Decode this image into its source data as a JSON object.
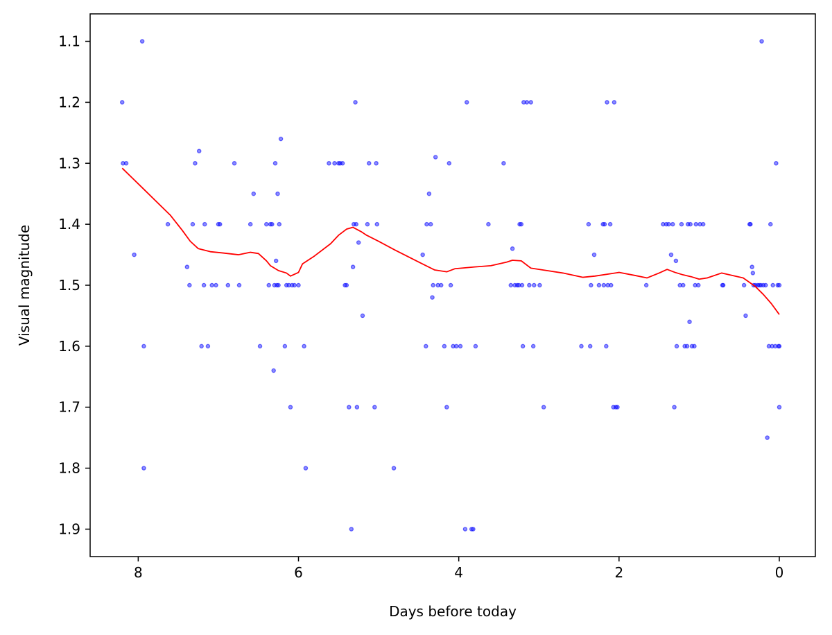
{
  "chart_data": {
    "type": "scatter",
    "title": "",
    "xlabel": "Days before today",
    "ylabel": "Visual magnitude",
    "xlim": [
      8.6,
      -0.45
    ],
    "ylim": [
      1.945,
      1.055
    ],
    "y_inverted": true,
    "x_inverted": true,
    "grid": false,
    "xticks": [
      8,
      6,
      4,
      2,
      0
    ],
    "yticks": [
      1.1,
      1.2,
      1.3,
      1.4,
      1.5,
      1.6,
      1.7,
      1.8,
      1.9
    ],
    "colors": {
      "points": "#0000ff",
      "trend": "#ff0000"
    },
    "series": [
      {
        "kind": "points",
        "values": [
          [
            8.2,
            1.2
          ],
          [
            8.19,
            1.3
          ],
          [
            8.15,
            1.3
          ],
          [
            8.05,
            1.45
          ],
          [
            7.95,
            1.1
          ],
          [
            7.93,
            1.6
          ],
          [
            7.93,
            1.8
          ],
          [
            7.63,
            1.4
          ],
          [
            7.39,
            1.47
          ],
          [
            7.36,
            1.5
          ],
          [
            7.32,
            1.4
          ],
          [
            7.29,
            1.3
          ],
          [
            7.24,
            1.28
          ],
          [
            7.21,
            1.6
          ],
          [
            7.18,
            1.5
          ],
          [
            7.17,
            1.4
          ],
          [
            7.13,
            1.6
          ],
          [
            7.08,
            1.5
          ],
          [
            7.03,
            1.5
          ],
          [
            7.0,
            1.4
          ],
          [
            6.98,
            1.4
          ],
          [
            6.88,
            1.5
          ],
          [
            6.8,
            1.3
          ],
          [
            6.74,
            1.5
          ],
          [
            6.6,
            1.4
          ],
          [
            6.56,
            1.35
          ],
          [
            6.48,
            1.6
          ],
          [
            6.4,
            1.4
          ],
          [
            6.37,
            1.5
          ],
          [
            6.35,
            1.4
          ],
          [
            6.33,
            1.4
          ],
          [
            6.31,
            1.64
          ],
          [
            6.3,
            1.5
          ],
          [
            6.29,
            1.3
          ],
          [
            6.28,
            1.46
          ],
          [
            6.27,
            1.5
          ],
          [
            6.26,
            1.35
          ],
          [
            6.25,
            1.5
          ],
          [
            6.24,
            1.4
          ],
          [
            6.22,
            1.26
          ],
          [
            6.17,
            1.6
          ],
          [
            6.15,
            1.5
          ],
          [
            6.12,
            1.5
          ],
          [
            6.1,
            1.7
          ],
          [
            6.08,
            1.5
          ],
          [
            6.05,
            1.5
          ],
          [
            6.0,
            1.5
          ],
          [
            5.93,
            1.6
          ],
          [
            5.91,
            1.8
          ],
          [
            5.62,
            1.3
          ],
          [
            5.55,
            1.3
          ],
          [
            5.5,
            1.3
          ],
          [
            5.48,
            1.3
          ],
          [
            5.45,
            1.3
          ],
          [
            5.42,
            1.5
          ],
          [
            5.4,
            1.5
          ],
          [
            5.37,
            1.7
          ],
          [
            5.34,
            1.9
          ],
          [
            5.32,
            1.47
          ],
          [
            5.31,
            1.4
          ],
          [
            5.29,
            1.2
          ],
          [
            5.28,
            1.4
          ],
          [
            5.27,
            1.7
          ],
          [
            5.25,
            1.43
          ],
          [
            5.2,
            1.55
          ],
          [
            5.14,
            1.4
          ],
          [
            5.12,
            1.3
          ],
          [
            5.05,
            1.7
          ],
          [
            5.03,
            1.3
          ],
          [
            5.02,
            1.4
          ],
          [
            4.81,
            1.8
          ],
          [
            4.45,
            1.45
          ],
          [
            4.41,
            1.6
          ],
          [
            4.4,
            1.4
          ],
          [
            4.37,
            1.35
          ],
          [
            4.35,
            1.4
          ],
          [
            4.33,
            1.52
          ],
          [
            4.32,
            1.5
          ],
          [
            4.29,
            1.29
          ],
          [
            4.26,
            1.5
          ],
          [
            4.22,
            1.5
          ],
          [
            4.18,
            1.6
          ],
          [
            4.15,
            1.7
          ],
          [
            4.12,
            1.3
          ],
          [
            4.1,
            1.5
          ],
          [
            4.07,
            1.6
          ],
          [
            4.03,
            1.6
          ],
          [
            3.98,
            1.6
          ],
          [
            3.92,
            1.9
          ],
          [
            3.9,
            1.2
          ],
          [
            3.84,
            1.9
          ],
          [
            3.82,
            1.9
          ],
          [
            3.79,
            1.6
          ],
          [
            3.63,
            1.4
          ],
          [
            3.44,
            1.3
          ],
          [
            3.35,
            1.5
          ],
          [
            3.33,
            1.44
          ],
          [
            3.3,
            1.5
          ],
          [
            3.27,
            1.5
          ],
          [
            3.25,
            1.5
          ],
          [
            3.24,
            1.4
          ],
          [
            3.22,
            1.4
          ],
          [
            3.21,
            1.5
          ],
          [
            3.2,
            1.6
          ],
          [
            3.19,
            1.2
          ],
          [
            3.15,
            1.2
          ],
          [
            3.12,
            1.5
          ],
          [
            3.1,
            1.2
          ],
          [
            3.07,
            1.6
          ],
          [
            3.06,
            1.5
          ],
          [
            2.99,
            1.5
          ],
          [
            2.94,
            1.7
          ],
          [
            2.47,
            1.6
          ],
          [
            2.38,
            1.4
          ],
          [
            2.36,
            1.6
          ],
          [
            2.35,
            1.5
          ],
          [
            2.31,
            1.45
          ],
          [
            2.25,
            1.5
          ],
          [
            2.2,
            1.4
          ],
          [
            2.19,
            1.5
          ],
          [
            2.18,
            1.4
          ],
          [
            2.16,
            1.6
          ],
          [
            2.15,
            1.2
          ],
          [
            2.14,
            1.5
          ],
          [
            2.11,
            1.4
          ],
          [
            2.1,
            1.5
          ],
          [
            2.07,
            1.7
          ],
          [
            2.06,
            1.2
          ],
          [
            2.04,
            1.7
          ],
          [
            2.02,
            1.7
          ],
          [
            1.66,
            1.5
          ],
          [
            1.45,
            1.4
          ],
          [
            1.41,
            1.4
          ],
          [
            1.38,
            1.4
          ],
          [
            1.35,
            1.45
          ],
          [
            1.33,
            1.4
          ],
          [
            1.31,
            1.7
          ],
          [
            1.29,
            1.46
          ],
          [
            1.28,
            1.6
          ],
          [
            1.24,
            1.5
          ],
          [
            1.22,
            1.4
          ],
          [
            1.2,
            1.5
          ],
          [
            1.18,
            1.6
          ],
          [
            1.15,
            1.6
          ],
          [
            1.14,
            1.4
          ],
          [
            1.12,
            1.56
          ],
          [
            1.11,
            1.4
          ],
          [
            1.09,
            1.6
          ],
          [
            1.06,
            1.6
          ],
          [
            1.05,
            1.5
          ],
          [
            1.04,
            1.4
          ],
          [
            1.01,
            1.5
          ],
          [
            0.99,
            1.4
          ],
          [
            0.95,
            1.4
          ],
          [
            0.71,
            1.5
          ],
          [
            0.7,
            1.5
          ],
          [
            0.44,
            1.5
          ],
          [
            0.42,
            1.55
          ],
          [
            0.37,
            1.4
          ],
          [
            0.36,
            1.4
          ],
          [
            0.34,
            1.47
          ],
          [
            0.33,
            1.48
          ],
          [
            0.32,
            1.5
          ],
          [
            0.3,
            1.5
          ],
          [
            0.27,
            1.5
          ],
          [
            0.25,
            1.5
          ],
          [
            0.23,
            1.5
          ],
          [
            0.22,
            1.1
          ],
          [
            0.2,
            1.5
          ],
          [
            0.17,
            1.5
          ],
          [
            0.15,
            1.75
          ],
          [
            0.13,
            1.6
          ],
          [
            0.11,
            1.4
          ],
          [
            0.09,
            1.6
          ],
          [
            0.08,
            1.5
          ],
          [
            0.05,
            1.6
          ],
          [
            0.04,
            1.3
          ],
          [
            0.02,
            1.5
          ],
          [
            0.01,
            1.6
          ],
          [
            0.0,
            1.6
          ],
          [
            0.0,
            1.7
          ],
          [
            0.0,
            1.5
          ]
        ]
      },
      {
        "kind": "line",
        "values": [
          [
            8.2,
            1.308
          ],
          [
            7.95,
            1.34
          ],
          [
            7.6,
            1.385
          ],
          [
            7.45,
            1.41
          ],
          [
            7.35,
            1.428
          ],
          [
            7.25,
            1.44
          ],
          [
            7.1,
            1.445
          ],
          [
            6.95,
            1.447
          ],
          [
            6.75,
            1.45
          ],
          [
            6.6,
            1.446
          ],
          [
            6.5,
            1.448
          ],
          [
            6.4,
            1.46
          ],
          [
            6.35,
            1.468
          ],
          [
            6.25,
            1.476
          ],
          [
            6.15,
            1.48
          ],
          [
            6.1,
            1.485
          ],
          [
            6.0,
            1.479
          ],
          [
            5.95,
            1.465
          ],
          [
            5.8,
            1.452
          ],
          [
            5.6,
            1.432
          ],
          [
            5.5,
            1.418
          ],
          [
            5.4,
            1.408
          ],
          [
            5.32,
            1.405
          ],
          [
            5.22,
            1.412
          ],
          [
            5.15,
            1.418
          ],
          [
            5.0,
            1.428
          ],
          [
            4.8,
            1.442
          ],
          [
            4.5,
            1.462
          ],
          [
            4.3,
            1.475
          ],
          [
            4.15,
            1.478
          ],
          [
            4.05,
            1.473
          ],
          [
            3.8,
            1.47
          ],
          [
            3.6,
            1.468
          ],
          [
            3.4,
            1.462
          ],
          [
            3.33,
            1.459
          ],
          [
            3.22,
            1.46
          ],
          [
            3.1,
            1.472
          ],
          [
            2.9,
            1.476
          ],
          [
            2.7,
            1.48
          ],
          [
            2.45,
            1.487
          ],
          [
            2.3,
            1.485
          ],
          [
            2.0,
            1.479
          ],
          [
            1.8,
            1.484
          ],
          [
            1.65,
            1.488
          ],
          [
            1.5,
            1.48
          ],
          [
            1.4,
            1.474
          ],
          [
            1.3,
            1.479
          ],
          [
            1.2,
            1.483
          ],
          [
            1.1,
            1.486
          ],
          [
            1.0,
            1.49
          ],
          [
            0.9,
            1.488
          ],
          [
            0.72,
            1.48
          ],
          [
            0.55,
            1.485
          ],
          [
            0.45,
            1.488
          ],
          [
            0.3,
            1.502
          ],
          [
            0.2,
            1.515
          ],
          [
            0.1,
            1.53
          ],
          [
            0.0,
            1.548
          ]
        ]
      }
    ]
  }
}
